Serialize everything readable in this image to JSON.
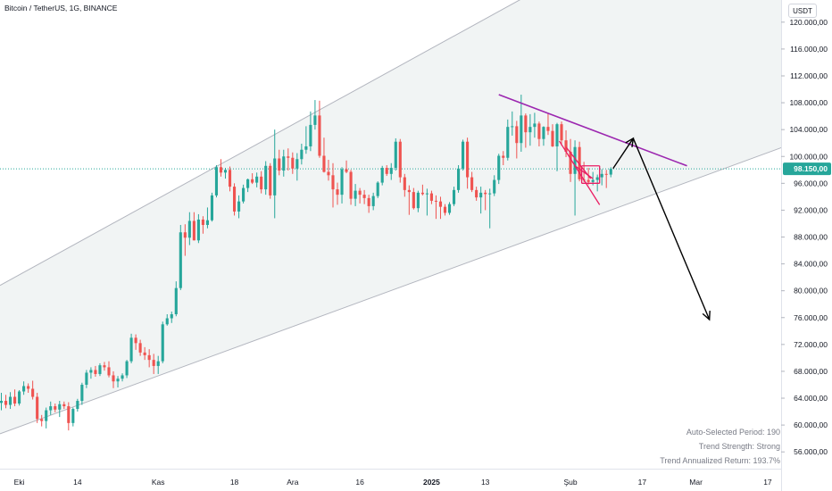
{
  "header": {
    "symbol_title": "Bitcoin / TetherUS, 1G, BINANCE",
    "currency_button": "USDT"
  },
  "colors": {
    "up": "#26a69a",
    "down": "#ef5350",
    "channel_fill": "#f0f3f3",
    "channel_line": "#b2b5be",
    "resistance": "#9c27b0",
    "pattern": "#e91e63",
    "arrow": "#000000",
    "price_line": "#26a69a",
    "price_badge": "#26a69a"
  },
  "stats": {
    "period": "Auto-Selected Period: 190",
    "strength": "Trend Strength: Strong",
    "return": "Trend Annualized Return: 193.7%"
  },
  "icons": [
    "arrow-up-right-icon",
    "arrow-down-right-icon"
  ],
  "chart_data": {
    "type": "candlestick",
    "title": "",
    "price_axis": {
      "side": "right",
      "ticks": [
        "120.000,00",
        "116.000,00",
        "112.000,00",
        "108.000,00",
        "104.000,00",
        "100.000,00",
        "96.000,00",
        "92.000,00",
        "88.000,00",
        "84.000,00",
        "80.000,00",
        "76.000,00",
        "72.000,00",
        "68.000,00",
        "64.000,00",
        "60.000,00",
        "56.000,00"
      ],
      "tick_values": [
        120000,
        116000,
        112000,
        108000,
        104000,
        100000,
        96000,
        92000,
        88000,
        84000,
        80000,
        76000,
        72000,
        68000,
        64000,
        60000,
        56000
      ],
      "ylim": [
        53500,
        123300
      ]
    },
    "time_axis": {
      "labels": [
        "Eki",
        "14",
        "Kas",
        "18",
        "Ara",
        "16",
        "2025",
        "13",
        "Şub",
        "17",
        "Mar",
        "17"
      ],
      "label_days": [
        0,
        13,
        31,
        48,
        61,
        76,
        92,
        104,
        123,
        139,
        151,
        167
      ],
      "xlim": [
        -4.3,
        170
      ]
    },
    "last_price": {
      "value": 98150,
      "label": "98.150,00"
    },
    "channel": {
      "upper": [
        [
          -4.3,
          80800
        ],
        [
          119,
          126000
        ]
      ],
      "lower": [
        [
          -4.3,
          58700
        ],
        [
          179,
          103500
        ]
      ]
    },
    "resistance_line": [
      [
        107,
        109200
      ],
      [
        149,
        98600
      ]
    ],
    "projection": {
      "peak": [
        137,
        102700
      ],
      "up_from": [
        132.5,
        98200
      ],
      "target": [
        154,
        75700
      ]
    },
    "candles": [
      {
        "d": -4,
        "o": 63300,
        "h": 64800,
        "l": 62200,
        "c": 63600
      },
      {
        "d": -3,
        "o": 63600,
        "h": 64500,
        "l": 62500,
        "c": 63000
      },
      {
        "d": -2,
        "o": 63000,
        "h": 64900,
        "l": 62400,
        "c": 64200
      },
      {
        "d": -1,
        "o": 64200,
        "h": 65300,
        "l": 62800,
        "c": 63200
      },
      {
        "d": 0,
        "o": 63200,
        "h": 65200,
        "l": 62900,
        "c": 65000
      },
      {
        "d": 1,
        "o": 65000,
        "h": 66500,
        "l": 64500,
        "c": 65800
      },
      {
        "d": 2,
        "o": 65800,
        "h": 66200,
        "l": 64800,
        "c": 65400
      },
      {
        "d": 3,
        "o": 65400,
        "h": 66600,
        "l": 63800,
        "c": 64200
      },
      {
        "d": 4,
        "o": 64200,
        "h": 64800,
        "l": 60300,
        "c": 60900
      },
      {
        "d": 5,
        "o": 60900,
        "h": 61500,
        "l": 59800,
        "c": 60600
      },
      {
        "d": 6,
        "o": 60600,
        "h": 62600,
        "l": 59500,
        "c": 62200
      },
      {
        "d": 7,
        "o": 62200,
        "h": 63500,
        "l": 61500,
        "c": 62800
      },
      {
        "d": 8,
        "o": 62800,
        "h": 63200,
        "l": 61900,
        "c": 62300
      },
      {
        "d": 9,
        "o": 62300,
        "h": 63600,
        "l": 61200,
        "c": 63100
      },
      {
        "d": 10,
        "o": 63100,
        "h": 63500,
        "l": 62400,
        "c": 62800
      },
      {
        "d": 11,
        "o": 62800,
        "h": 63400,
        "l": 59200,
        "c": 60300
      },
      {
        "d": 12,
        "o": 60300,
        "h": 62600,
        "l": 59800,
        "c": 62400
      },
      {
        "d": 13,
        "o": 62400,
        "h": 63900,
        "l": 62000,
        "c": 63600
      },
      {
        "d": 14,
        "o": 63600,
        "h": 66300,
        "l": 63000,
        "c": 66000
      },
      {
        "d": 15,
        "o": 66000,
        "h": 68200,
        "l": 65500,
        "c": 67800
      },
      {
        "d": 16,
        "o": 67800,
        "h": 68600,
        "l": 66900,
        "c": 68200
      },
      {
        "d": 17,
        "o": 68200,
        "h": 68800,
        "l": 67200,
        "c": 67600
      },
      {
        "d": 18,
        "o": 67600,
        "h": 69200,
        "l": 67300,
        "c": 68900
      },
      {
        "d": 19,
        "o": 68900,
        "h": 69400,
        "l": 68100,
        "c": 68600
      },
      {
        "d": 20,
        "o": 68600,
        "h": 69500,
        "l": 67100,
        "c": 67400
      },
      {
        "d": 21,
        "o": 67400,
        "h": 68000,
        "l": 65500,
        "c": 66500
      },
      {
        "d": 22,
        "o": 66500,
        "h": 67300,
        "l": 65600,
        "c": 66900
      },
      {
        "d": 23,
        "o": 66900,
        "h": 67700,
        "l": 66500,
        "c": 67400
      },
      {
        "d": 24,
        "o": 67400,
        "h": 69700,
        "l": 67000,
        "c": 69500
      },
      {
        "d": 25,
        "o": 69500,
        "h": 73600,
        "l": 69200,
        "c": 73000
      },
      {
        "d": 26,
        "o": 73000,
        "h": 73500,
        "l": 71200,
        "c": 72200
      },
      {
        "d": 27,
        "o": 72200,
        "h": 72700,
        "l": 70300,
        "c": 70800
      },
      {
        "d": 28,
        "o": 70800,
        "h": 71600,
        "l": 69700,
        "c": 70400
      },
      {
        "d": 29,
        "o": 70400,
        "h": 71300,
        "l": 68600,
        "c": 69700
      },
      {
        "d": 30,
        "o": 69700,
        "h": 70600,
        "l": 67600,
        "c": 68800
      },
      {
        "d": 31,
        "o": 68800,
        "h": 70300,
        "l": 67600,
        "c": 69500
      },
      {
        "d": 32,
        "o": 69500,
        "h": 75400,
        "l": 69200,
        "c": 75000
      },
      {
        "d": 33,
        "o": 75000,
        "h": 76500,
        "l": 74800,
        "c": 75900
      },
      {
        "d": 34,
        "o": 75900,
        "h": 76900,
        "l": 75200,
        "c": 76500
      },
      {
        "d": 35,
        "o": 76500,
        "h": 81400,
        "l": 76200,
        "c": 80400
      },
      {
        "d": 36,
        "o": 80400,
        "h": 89800,
        "l": 80100,
        "c": 88700
      },
      {
        "d": 37,
        "o": 88700,
        "h": 89900,
        "l": 85200,
        "c": 87900
      },
      {
        "d": 38,
        "o": 87900,
        "h": 91700,
        "l": 86800,
        "c": 90400
      },
      {
        "d": 39,
        "o": 90400,
        "h": 91700,
        "l": 87500,
        "c": 87500
      },
      {
        "d": 40,
        "o": 87500,
        "h": 91400,
        "l": 87100,
        "c": 90600
      },
      {
        "d": 41,
        "o": 90600,
        "h": 91100,
        "l": 88500,
        "c": 89800
      },
      {
        "d": 42,
        "o": 89800,
        "h": 92400,
        "l": 89300,
        "c": 90500
      },
      {
        "d": 43,
        "o": 90500,
        "h": 94600,
        "l": 90300,
        "c": 94200
      },
      {
        "d": 44,
        "o": 94200,
        "h": 98700,
        "l": 93900,
        "c": 98400
      },
      {
        "d": 45,
        "o": 98400,
        "h": 99600,
        "l": 97000,
        "c": 97600
      },
      {
        "d": 46,
        "o": 97600,
        "h": 98300,
        "l": 96700,
        "c": 98000
      },
      {
        "d": 47,
        "o": 98000,
        "h": 98500,
        "l": 94800,
        "c": 95500
      },
      {
        "d": 48,
        "o": 95500,
        "h": 96000,
        "l": 91200,
        "c": 91800
      },
      {
        "d": 49,
        "o": 91800,
        "h": 94200,
        "l": 90800,
        "c": 93300
      },
      {
        "d": 50,
        "o": 93300,
        "h": 95800,
        "l": 93000,
        "c": 95300
      },
      {
        "d": 51,
        "o": 95300,
        "h": 96700,
        "l": 94700,
        "c": 96600
      },
      {
        "d": 52,
        "o": 96600,
        "h": 97500,
        "l": 95900,
        "c": 96100
      },
      {
        "d": 53,
        "o": 96100,
        "h": 97600,
        "l": 95400,
        "c": 97000
      },
      {
        "d": 54,
        "o": 97000,
        "h": 97800,
        "l": 94500,
        "c": 95100
      },
      {
        "d": 55,
        "o": 95100,
        "h": 99300,
        "l": 94300,
        "c": 98600
      },
      {
        "d": 56,
        "o": 98600,
        "h": 99000,
        "l": 93700,
        "c": 94200
      },
      {
        "d": 57,
        "o": 94200,
        "h": 104000,
        "l": 90800,
        "c": 99700
      },
      {
        "d": 58,
        "o": 99700,
        "h": 101000,
        "l": 97200,
        "c": 97900
      },
      {
        "d": 59,
        "o": 97900,
        "h": 101000,
        "l": 97000,
        "c": 100000
      },
      {
        "d": 60,
        "o": 100000,
        "h": 101200,
        "l": 97900,
        "c": 99800
      },
      {
        "d": 61,
        "o": 99800,
        "h": 100600,
        "l": 97400,
        "c": 98200
      },
      {
        "d": 62,
        "o": 98200,
        "h": 100500,
        "l": 96400,
        "c": 99600
      },
      {
        "d": 63,
        "o": 99600,
        "h": 101900,
        "l": 98800,
        "c": 101000
      },
      {
        "d": 64,
        "o": 101000,
        "h": 104500,
        "l": 100400,
        "c": 101500
      },
      {
        "d": 65,
        "o": 101500,
        "h": 106700,
        "l": 100800,
        "c": 104700
      },
      {
        "d": 66,
        "o": 104700,
        "h": 108400,
        "l": 104000,
        "c": 106100
      },
      {
        "d": 67,
        "o": 106100,
        "h": 108300,
        "l": 99800,
        "c": 100100
      },
      {
        "d": 68,
        "o": 100100,
        "h": 102800,
        "l": 97600,
        "c": 97700
      },
      {
        "d": 69,
        "o": 97700,
        "h": 99500,
        "l": 96400,
        "c": 97200
      },
      {
        "d": 70,
        "o": 97200,
        "h": 99000,
        "l": 92400,
        "c": 95100
      },
      {
        "d": 71,
        "o": 95100,
        "h": 96100,
        "l": 92800,
        "c": 94300
      },
      {
        "d": 72,
        "o": 94300,
        "h": 98400,
        "l": 93000,
        "c": 98100
      },
      {
        "d": 73,
        "o": 98100,
        "h": 99400,
        "l": 97500,
        "c": 97700
      },
      {
        "d": 74,
        "o": 97700,
        "h": 98000,
        "l": 92800,
        "c": 93700
      },
      {
        "d": 75,
        "o": 93700,
        "h": 95900,
        "l": 92600,
        "c": 94900
      },
      {
        "d": 76,
        "o": 94900,
        "h": 95300,
        "l": 93000,
        "c": 94300
      },
      {
        "d": 77,
        "o": 94300,
        "h": 95000,
        "l": 92900,
        "c": 93800
      },
      {
        "d": 78,
        "o": 93800,
        "h": 94300,
        "l": 91600,
        "c": 92600
      },
      {
        "d": 79,
        "o": 92600,
        "h": 94600,
        "l": 92000,
        "c": 94100
      },
      {
        "d": 80,
        "o": 94100,
        "h": 96300,
        "l": 93800,
        "c": 96100
      },
      {
        "d": 81,
        "o": 96100,
        "h": 98600,
        "l": 95700,
        "c": 98300
      },
      {
        "d": 82,
        "o": 98300,
        "h": 98700,
        "l": 97100,
        "c": 97400
      },
      {
        "d": 83,
        "o": 97400,
        "h": 99000,
        "l": 96500,
        "c": 98300
      },
      {
        "d": 84,
        "o": 98300,
        "h": 102700,
        "l": 97900,
        "c": 102200
      },
      {
        "d": 85,
        "o": 102200,
        "h": 102600,
        "l": 96100,
        "c": 96900
      },
      {
        "d": 86,
        "o": 96900,
        "h": 97400,
        "l": 94000,
        "c": 95000
      },
      {
        "d": 87,
        "o": 95000,
        "h": 95700,
        "l": 91300,
        "c": 94700
      },
      {
        "d": 88,
        "o": 94700,
        "h": 95300,
        "l": 92100,
        "c": 92300
      },
      {
        "d": 89,
        "o": 92300,
        "h": 94900,
        "l": 91700,
        "c": 94600
      },
      {
        "d": 90,
        "o": 94600,
        "h": 95800,
        "l": 94200,
        "c": 94400
      },
      {
        "d": 91,
        "o": 94400,
        "h": 95200,
        "l": 91200,
        "c": 94500
      },
      {
        "d": 92,
        "o": 94500,
        "h": 94900,
        "l": 92900,
        "c": 93400
      },
      {
        "d": 93,
        "o": 93400,
        "h": 94200,
        "l": 90700,
        "c": 93300
      },
      {
        "d": 94,
        "o": 93300,
        "h": 94000,
        "l": 90700,
        "c": 92500
      },
      {
        "d": 95,
        "o": 92500,
        "h": 92900,
        "l": 91200,
        "c": 91600
      },
      {
        "d": 96,
        "o": 91600,
        "h": 93200,
        "l": 91300,
        "c": 92900
      },
      {
        "d": 97,
        "o": 92900,
        "h": 95500,
        "l": 92600,
        "c": 95000
      },
      {
        "d": 98,
        "o": 95000,
        "h": 98700,
        "l": 94600,
        "c": 98200
      },
      {
        "d": 99,
        "o": 98200,
        "h": 102500,
        "l": 97900,
        "c": 102200
      },
      {
        "d": 100,
        "o": 102200,
        "h": 102800,
        "l": 95200,
        "c": 96900
      },
      {
        "d": 101,
        "o": 96900,
        "h": 97700,
        "l": 94700,
        "c": 95000
      },
      {
        "d": 102,
        "o": 95000,
        "h": 95500,
        "l": 93400,
        "c": 93900
      },
      {
        "d": 103,
        "o": 93900,
        "h": 95500,
        "l": 91500,
        "c": 94600
      },
      {
        "d": 104,
        "o": 94600,
        "h": 95000,
        "l": 92000,
        "c": 94400
      },
      {
        "d": 105,
        "o": 94400,
        "h": 95200,
        "l": 89300,
        "c": 94500
      },
      {
        "d": 106,
        "o": 94500,
        "h": 97200,
        "l": 94100,
        "c": 96500
      },
      {
        "d": 107,
        "o": 96500,
        "h": 100400,
        "l": 95900,
        "c": 100100
      },
      {
        "d": 108,
        "o": 100100,
        "h": 100800,
        "l": 98700,
        "c": 99800
      },
      {
        "d": 109,
        "o": 99800,
        "h": 105500,
        "l": 99400,
        "c": 104400
      },
      {
        "d": 110,
        "o": 104400,
        "h": 106700,
        "l": 103100,
        "c": 104500
      },
      {
        "d": 111,
        "o": 104500,
        "h": 105300,
        "l": 99700,
        "c": 102000
      },
      {
        "d": 112,
        "o": 102000,
        "h": 109200,
        "l": 100700,
        "c": 106100
      },
      {
        "d": 113,
        "o": 106100,
        "h": 106400,
        "l": 101300,
        "c": 103600
      },
      {
        "d": 114,
        "o": 103600,
        "h": 106300,
        "l": 101600,
        "c": 104400
      },
      {
        "d": 115,
        "o": 104400,
        "h": 106500,
        "l": 102800,
        "c": 104900
      },
      {
        "d": 116,
        "o": 104900,
        "h": 105200,
        "l": 101500,
        "c": 102600
      },
      {
        "d": 117,
        "o": 102600,
        "h": 104500,
        "l": 101600,
        "c": 104400
      },
      {
        "d": 118,
        "o": 104400,
        "h": 106400,
        "l": 103200,
        "c": 103800
      },
      {
        "d": 119,
        "o": 103800,
        "h": 104800,
        "l": 101400,
        "c": 101500
      },
      {
        "d": 120,
        "o": 101500,
        "h": 105000,
        "l": 97800,
        "c": 104800
      },
      {
        "d": 121,
        "o": 104800,
        "h": 105200,
        "l": 101600,
        "c": 102400
      },
      {
        "d": 122,
        "o": 102400,
        "h": 103900,
        "l": 99900,
        "c": 100700
      },
      {
        "d": 123,
        "o": 100700,
        "h": 102600,
        "l": 96200,
        "c": 97400
      },
      {
        "d": 124,
        "o": 97400,
        "h": 102400,
        "l": 91200,
        "c": 101400
      },
      {
        "d": 125,
        "o": 101400,
        "h": 102200,
        "l": 96300,
        "c": 96600
      },
      {
        "d": 126,
        "o": 96600,
        "h": 99200,
        "l": 96200,
        "c": 96500
      },
      {
        "d": 127,
        "o": 96500,
        "h": 98300,
        "l": 95800,
        "c": 96200
      },
      {
        "d": 128,
        "o": 96200,
        "h": 97700,
        "l": 95700,
        "c": 96500
      },
      {
        "d": 129,
        "o": 96500,
        "h": 97300,
        "l": 94800,
        "c": 96900
      },
      {
        "d": 130,
        "o": 96900,
        "h": 98100,
        "l": 95700,
        "c": 97400
      },
      {
        "d": 131,
        "o": 97400,
        "h": 98000,
        "l": 95300,
        "c": 97300
      },
      {
        "d": 132,
        "o": 97300,
        "h": 98400,
        "l": 96900,
        "c": 98150
      }
    ]
  }
}
